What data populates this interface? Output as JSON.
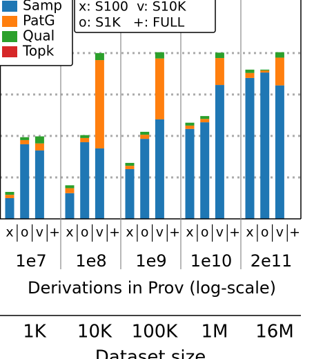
{
  "chart_data": {
    "type": "bar",
    "stacked": true,
    "categories": [
      "x",
      "o",
      "v",
      "+",
      "x",
      "o",
      "v",
      "+",
      "x",
      "o",
      "v",
      "+",
      "x",
      "o",
      "v",
      "+",
      "x",
      "o",
      "v",
      "+"
    ],
    "groups": [
      "1e7",
      "1e8",
      "1e9",
      "1e10",
      "2e11"
    ],
    "group_secondary_labels": [
      "1K",
      "10K",
      "100K",
      "1M",
      "16M"
    ],
    "xlabel": "Derivations in Prov (log-scale)",
    "x2label": "Dataset size",
    "annotations": [
      "x: S100  v: S10K",
      "o: S1K   +: FULL"
    ],
    "ylim": [
      0,
      5.28
    ],
    "yticks": [
      1,
      2,
      3,
      4
    ],
    "grid": true,
    "series": [
      {
        "name": "Samp",
        "color": "#1f77b4",
        "values": [
          0.5,
          1.8,
          1.65,
          null,
          0.62,
          1.85,
          1.7,
          null,
          1.2,
          1.93,
          2.4,
          null,
          2.17,
          2.33,
          3.23,
          null,
          3.4,
          3.53,
          3.22,
          null
        ]
      },
      {
        "name": "PatG",
        "color": "#ff7f0e",
        "values": [
          0.08,
          0.1,
          0.17,
          null,
          0.12,
          0.1,
          2.13,
          null,
          0.08,
          0.1,
          1.47,
          null,
          0.08,
          0.08,
          0.65,
          null,
          0.12,
          0.05,
          0.67,
          null
        ]
      },
      {
        "name": "Qual",
        "color": "#2ca02c",
        "values": [
          0.07,
          0.07,
          0.17,
          null,
          0.07,
          0.07,
          0.17,
          null,
          0.07,
          0.07,
          0.15,
          null,
          0.07,
          0.07,
          0.13,
          null,
          0.08,
          0.02,
          0.13,
          null
        ]
      },
      {
        "name": "Topk",
        "color": "#d62728",
        "values": [
          0,
          0,
          0,
          null,
          0,
          0,
          0,
          null,
          0,
          0,
          0,
          null,
          0,
          0,
          0,
          null,
          0,
          0,
          0,
          null
        ]
      }
    ]
  }
}
